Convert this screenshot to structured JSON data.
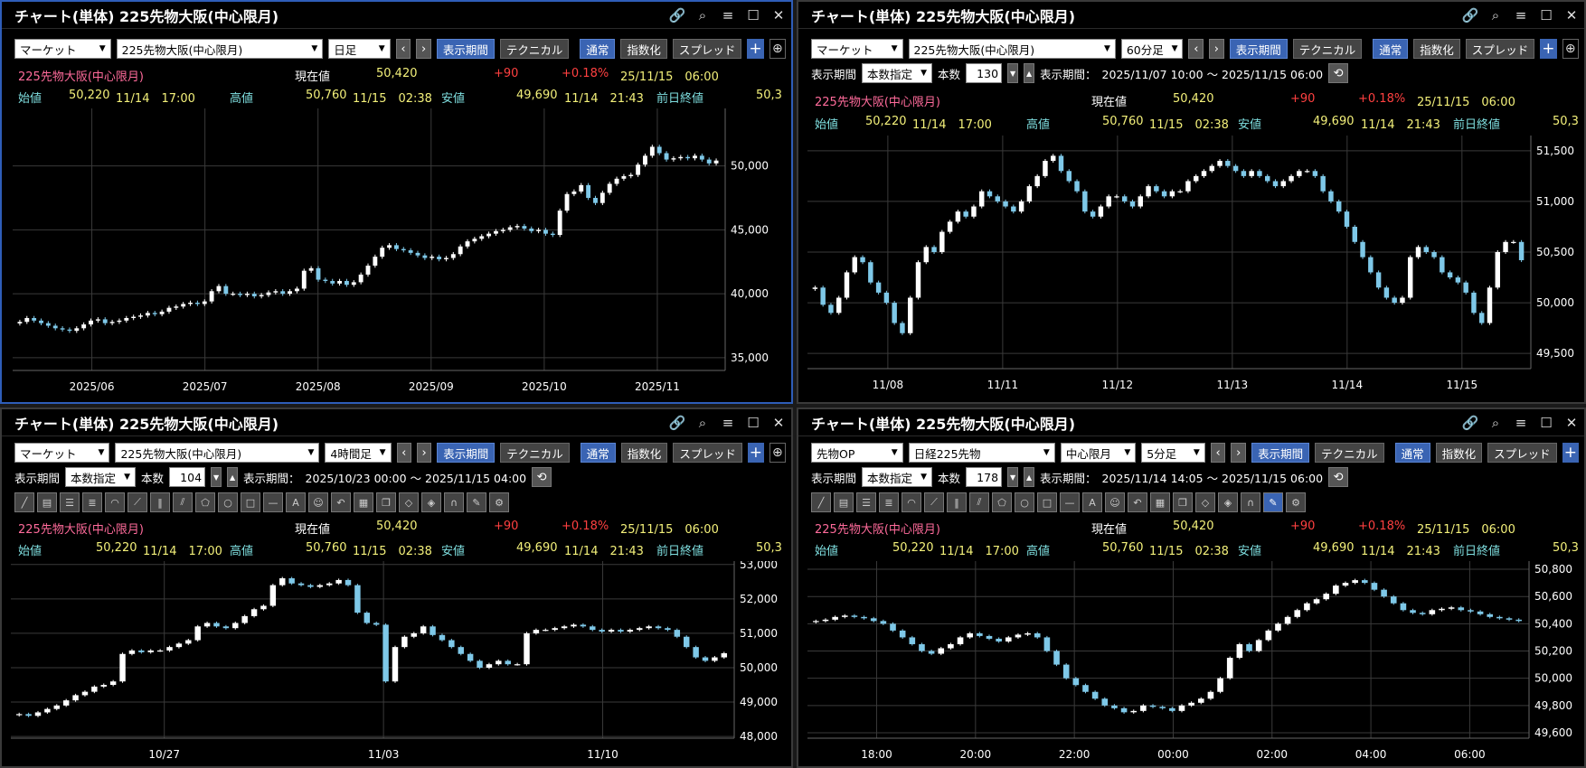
{
  "colors": {
    "up_body": "#ffffff",
    "down_body": "#7ec8e8",
    "grid": "#3a3a3a",
    "accent_blue": "#3a64b3",
    "pink": "#ff6b9b",
    "cyan": "#7fdfe0",
    "yellow": "#f3f07a",
    "red": "#ff4040"
  },
  "icons": [
    "link-icon",
    "search-icon",
    "menu-icon",
    "maximize-icon",
    "close-icon",
    "chevron-left-icon",
    "chevron-right-icon",
    "plus-icon",
    "zoom-icon",
    "refresh-icon"
  ],
  "common": {
    "title": "チャート(単体) 225先物大阪(中心限月)",
    "btn_period": "表示期間",
    "btn_technical": "テクニカル",
    "btn_normal": "通常",
    "btn_index": "指数化",
    "btn_spread": "スプレッド",
    "label_count_mode": "本数指定",
    "label_count": "本数",
    "label_range": "表示期間：",
    "quote": {
      "name": "225先物大阪(中心限月)",
      "current_label": "現在値",
      "current_value": "50,420",
      "change": "+90",
      "change_pct": "+0.18%",
      "datetime": "25/11/15　06:00",
      "open_label": "始値",
      "open_value": "50,220",
      "open_time": "11/14　17:00",
      "high_label": "高値",
      "high_value": "50,760",
      "high_time": "11/15　02:38",
      "low_label": "安値",
      "low_value": "49,690",
      "low_time": "11/14　21:43",
      "prev_close_label": "前日終値",
      "prev_close_value": "50,3"
    }
  },
  "panels": [
    {
      "id": "daily",
      "market": "マーケット",
      "symbol": "225先物大阪(中心限月)",
      "interval": "日足",
      "chart_data": {
        "type": "candlestick",
        "x_ticks": [
          "2025/06",
          "2025/07",
          "2025/08",
          "2025/09",
          "2025/10",
          "2025/11"
        ],
        "y_ticks": [
          "50,000",
          "45,000",
          "40,000",
          "35,000"
        ],
        "ylim": [
          34000,
          54500
        ],
        "closes": [
          37800,
          38100,
          37900,
          37700,
          37500,
          37300,
          37200,
          37100,
          37300,
          37600,
          37900,
          38000,
          37700,
          37800,
          37900,
          38100,
          38200,
          38300,
          38500,
          38400,
          38600,
          38900,
          39000,
          39200,
          39300,
          39200,
          39400,
          40200,
          40600,
          40000,
          40000,
          39900,
          40000,
          39800,
          39900,
          40100,
          40200,
          40000,
          40200,
          40400,
          41800,
          42000,
          41100,
          41000,
          40800,
          41000,
          40700,
          40900,
          41500,
          42200,
          42900,
          43600,
          43800,
          43500,
          43400,
          43200,
          43000,
          42800,
          42900,
          42700,
          42800,
          43100,
          43700,
          44100,
          44300,
          44500,
          44700,
          44900,
          45000,
          45200,
          45300,
          45100,
          44900,
          45000,
          44700,
          44600,
          46500,
          47800,
          48000,
          48500,
          47500,
          47100,
          47900,
          48600,
          49000,
          49200,
          49300,
          50100,
          50800,
          51500,
          51000,
          50500,
          50600,
          50700,
          50600,
          50800,
          50500,
          50200,
          50420
        ]
      }
    },
    {
      "id": "60min",
      "market": "マーケット",
      "symbol": "225先物大阪(中心限月)",
      "interval": "60分足",
      "count": "130",
      "range": "2025/11/07 10:00 ～ 2025/11/15 06:00",
      "chart_data": {
        "type": "candlestick",
        "x_ticks": [
          "11/08",
          "11/11",
          "11/12",
          "11/13",
          "11/14",
          "11/15"
        ],
        "y_ticks": [
          "51,500",
          "51,000",
          "50,500",
          "50,000",
          "49,500"
        ],
        "ylim": [
          49350,
          51650
        ],
        "closes": [
          50150,
          49980,
          49900,
          50050,
          50300,
          50450,
          50400,
          50200,
          50100,
          50000,
          49800,
          49700,
          50050,
          50400,
          50550,
          50500,
          50700,
          50800,
          50900,
          50850,
          50950,
          51100,
          51050,
          51000,
          50950,
          50900,
          51000,
          51150,
          51250,
          51400,
          51450,
          51300,
          51200,
          51100,
          50900,
          50850,
          50950,
          51050,
          51050,
          51000,
          50950,
          51050,
          51150,
          51100,
          51050,
          51100,
          51100,
          51200,
          51250,
          51300,
          51350,
          51400,
          51350,
          51300,
          51250,
          51300,
          51250,
          51200,
          51150,
          51200,
          51250,
          51300,
          51300,
          51250,
          51100,
          51000,
          50900,
          50750,
          50600,
          50450,
          50300,
          50150,
          50050,
          50000,
          50050,
          50450,
          50550,
          50500,
          50450,
          50300,
          50250,
          50200,
          50100,
          49900,
          49800,
          50150,
          50500,
          50600,
          50600,
          50420
        ]
      }
    },
    {
      "id": "4hour",
      "market": "マーケット",
      "symbol": "225先物大阪(中心限月)",
      "interval": "4時間足",
      "count": "104",
      "range": "2025/10/23 00:00 ～ 2025/11/15 04:00",
      "chart_data": {
        "type": "candlestick",
        "x_ticks": [
          "10/27",
          "11/03",
          "11/10"
        ],
        "y_ticks": [
          "53,000",
          "52,000",
          "51,000",
          "50,000",
          "49,000",
          "48,000"
        ],
        "ylim": [
          47950,
          53100
        ],
        "closes": [
          48650,
          48600,
          48700,
          48800,
          48900,
          49050,
          49200,
          49300,
          49450,
          49500,
          49600,
          50400,
          50500,
          50450,
          50500,
          50500,
          50600,
          50700,
          50800,
          51200,
          51300,
          51200,
          51150,
          51300,
          51500,
          51700,
          51800,
          52400,
          52600,
          52450,
          52400,
          52350,
          52400,
          52450,
          52550,
          52400,
          51600,
          51300,
          51250,
          49600,
          50600,
          50900,
          51000,
          51200,
          50950,
          50800,
          50600,
          50400,
          50200,
          50000,
          50100,
          50200,
          50100,
          50100,
          51000,
          51100,
          51100,
          51150,
          51200,
          51250,
          51200,
          51100,
          51050,
          51100,
          51050,
          51100,
          51150,
          51200,
          51150,
          51100,
          50900,
          50600,
          50300,
          50200,
          50300,
          50420
        ]
      }
    },
    {
      "id": "5min",
      "market": "先物OP",
      "symbol": "日経225先物",
      "contract": "中心限月",
      "interval": "5分足",
      "count": "178",
      "range": "2025/11/14 14:05 ～ 2025/11/15 06:00",
      "chart_data": {
        "type": "candlestick",
        "x_ticks": [
          "18:00",
          "20:00",
          "22:00",
          "00:00",
          "02:00",
          "04:00",
          "06:00"
        ],
        "y_ticks": [
          "50,800",
          "50,600",
          "50,400",
          "50,200",
          "50,000",
          "49,800",
          "49,600"
        ],
        "ylim": [
          49560,
          50860
        ],
        "closes": [
          50420,
          50430,
          50450,
          50460,
          50450,
          50440,
          50420,
          50400,
          50350,
          50300,
          50250,
          50200,
          50180,
          50220,
          50250,
          50300,
          50330,
          50310,
          50290,
          50270,
          50300,
          50320,
          50330,
          50300,
          50200,
          50100,
          50000,
          49950,
          49900,
          49850,
          49800,
          49780,
          49750,
          49760,
          49800,
          49790,
          49780,
          49760,
          49800,
          49820,
          49850,
          49900,
          50000,
          50150,
          50250,
          50200,
          50280,
          50350,
          50400,
          50450,
          50500,
          50550,
          50580,
          50620,
          50680,
          50700,
          50720,
          50700,
          50650,
          50600,
          50550,
          50500,
          50480,
          50470,
          50500,
          50510,
          50520,
          50500,
          50490,
          50470,
          50450,
          50440,
          50430,
          50420
        ]
      }
    }
  ]
}
